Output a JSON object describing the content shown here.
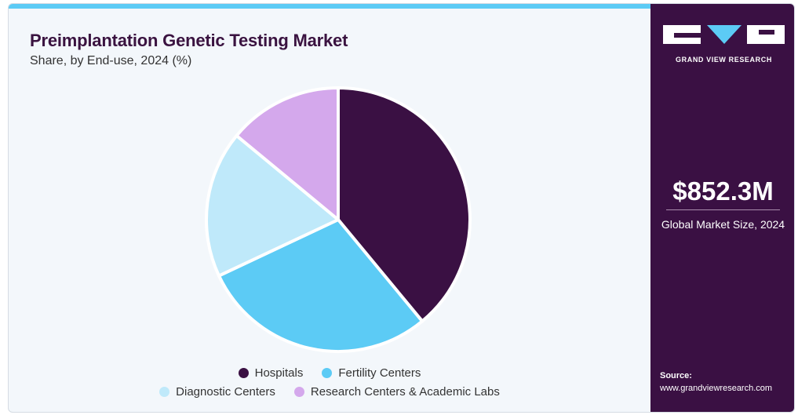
{
  "chart_data": {
    "type": "pie",
    "title": "Preimplantation Genetic Testing Market",
    "subtitle": "Share, by End-use, 2024 (%)",
    "categories": [
      "Hospitals",
      "Fertility Centers",
      "Diagnostic Centers",
      "Research Centers & Academic Labs"
    ],
    "values": [
      39,
      29,
      18,
      14
    ],
    "colors": [
      "#3a1043",
      "#5ccbf5",
      "#bfe9fa",
      "#d4a8ec"
    ],
    "legend_position": "bottom"
  },
  "legend": {
    "items": [
      "Hospitals",
      "Fertility Centers",
      "Diagnostic Centers",
      "Research Centers & Academic Labs"
    ]
  },
  "side_panel": {
    "brand": "GRAND VIEW RESEARCH",
    "market_value": "$852.3M",
    "market_label": "Global Market Size, 2024",
    "source_label": "Source:",
    "source_url": "www.grandviewresearch.com"
  }
}
